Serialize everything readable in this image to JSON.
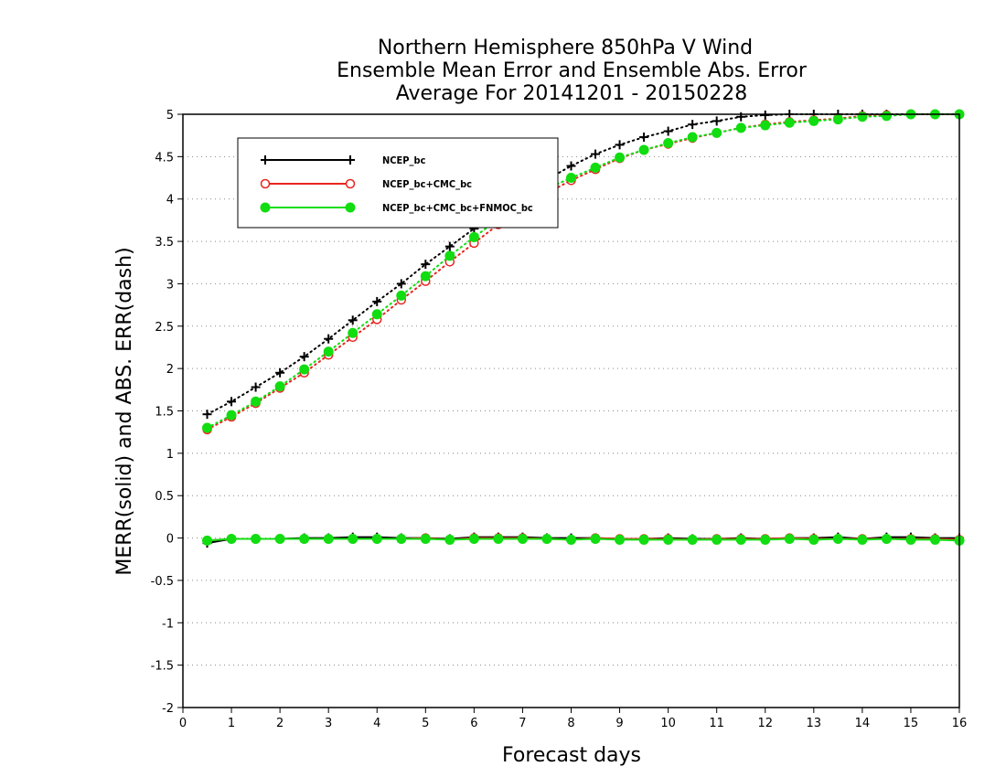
{
  "chart_data": {
    "type": "line",
    "title": [
      "Northern Hemisphere 850hPa V Wind",
      "Ensemble Mean Error and Ensemble Abs. Error",
      "Average For 20141201 - 20150228"
    ],
    "xlabel": "Forecast days",
    "ylabel": "MERR(solid) and ABS. ERR(dash)",
    "xlim": [
      0,
      16
    ],
    "ylim": [
      -2,
      5
    ],
    "xticks": [
      0,
      1,
      2,
      3,
      4,
      5,
      6,
      7,
      8,
      9,
      10,
      11,
      12,
      13,
      14,
      15,
      16
    ],
    "yticks": [
      -2,
      -1.5,
      -1,
      -0.5,
      0,
      0.5,
      1,
      1.5,
      2,
      2.5,
      3,
      3.5,
      4,
      4.5,
      5
    ],
    "ytick_labels": [
      "-2",
      "-1.5",
      "-1",
      "-0.5",
      "0",
      "0.5",
      "1",
      "1.5",
      "2",
      "2.5",
      "3",
      "3.5",
      "4",
      "4.5",
      "5"
    ],
    "grid": "horizontal dotted",
    "legend_position": "top-left",
    "x": [
      0.5,
      1.0,
      1.5,
      2.0,
      2.5,
      3.0,
      3.5,
      4.0,
      4.5,
      5.0,
      5.5,
      6.0,
      6.5,
      7.0,
      7.5,
      8.0,
      8.5,
      9.0,
      9.5,
      10.0,
      10.5,
      11.0,
      11.5,
      12.0,
      12.5,
      13.0,
      13.5,
      14.0,
      14.5,
      15.0,
      15.5,
      16.0
    ],
    "series": [
      {
        "name": "NCEP_bc",
        "color": "#000000",
        "marker": "plus",
        "abs_err": [
          1.46,
          1.61,
          1.78,
          1.95,
          2.14,
          2.35,
          2.57,
          2.79,
          3.0,
          3.23,
          3.44,
          3.65,
          3.86,
          4.05,
          4.23,
          4.39,
          4.53,
          4.64,
          4.73,
          4.8,
          4.88,
          4.92,
          4.97,
          4.99,
          5.0,
          5.0,
          5.0,
          5.0,
          5.0,
          5.0,
          5.0,
          5.0
        ],
        "mean_err": [
          -0.06,
          -0.01,
          -0.01,
          -0.01,
          0.0,
          0.0,
          0.01,
          0.01,
          0.0,
          0.0,
          -0.01,
          0.01,
          0.01,
          0.01,
          0.0,
          0.0,
          0.0,
          -0.01,
          -0.01,
          0.0,
          -0.01,
          -0.01,
          0.0,
          -0.01,
          0.0,
          0.0,
          0.01,
          -0.01,
          0.01,
          0.01,
          0.0,
          0.0
        ]
      },
      {
        "name": "NCEP_bc+CMC_bc",
        "color": "#e8241f",
        "marker": "open-circle",
        "abs_err": [
          1.28,
          1.43,
          1.59,
          1.77,
          1.95,
          2.16,
          2.37,
          2.58,
          2.81,
          3.03,
          3.26,
          3.48,
          3.7,
          3.89,
          4.07,
          4.22,
          4.35,
          4.48,
          4.58,
          4.65,
          4.72,
          4.78,
          4.84,
          4.88,
          4.91,
          4.93,
          4.95,
          4.98,
          4.99,
          5.0,
          5.0,
          5.0
        ],
        "mean_err": [
          -0.03,
          -0.01,
          -0.01,
          -0.01,
          -0.01,
          -0.01,
          -0.01,
          -0.01,
          -0.01,
          0.0,
          -0.02,
          0.0,
          0.0,
          0.0,
          -0.01,
          -0.02,
          0.0,
          -0.01,
          -0.01,
          -0.01,
          -0.02,
          -0.01,
          -0.01,
          -0.01,
          0.0,
          -0.01,
          -0.01,
          -0.01,
          -0.01,
          -0.01,
          -0.01,
          -0.02
        ]
      },
      {
        "name": "NCEP_bc+CMC_bc+FNMOC_bc",
        "color": "#11dd11",
        "marker": "filled-circle",
        "abs_err": [
          1.3,
          1.45,
          1.61,
          1.79,
          1.99,
          2.2,
          2.42,
          2.64,
          2.86,
          3.09,
          3.33,
          3.55,
          3.76,
          3.95,
          4.12,
          4.25,
          4.37,
          4.49,
          4.58,
          4.66,
          4.73,
          4.78,
          4.84,
          4.87,
          4.9,
          4.92,
          4.94,
          4.97,
          4.98,
          5.0,
          5.0,
          5.0
        ],
        "mean_err": [
          -0.03,
          -0.01,
          -0.01,
          -0.01,
          -0.01,
          -0.01,
          -0.01,
          -0.01,
          -0.01,
          -0.01,
          -0.02,
          -0.01,
          -0.01,
          -0.01,
          -0.01,
          -0.02,
          -0.01,
          -0.02,
          -0.02,
          -0.02,
          -0.02,
          -0.02,
          -0.02,
          -0.02,
          -0.01,
          -0.02,
          -0.01,
          -0.02,
          -0.01,
          -0.02,
          -0.02,
          -0.03
        ]
      }
    ]
  }
}
